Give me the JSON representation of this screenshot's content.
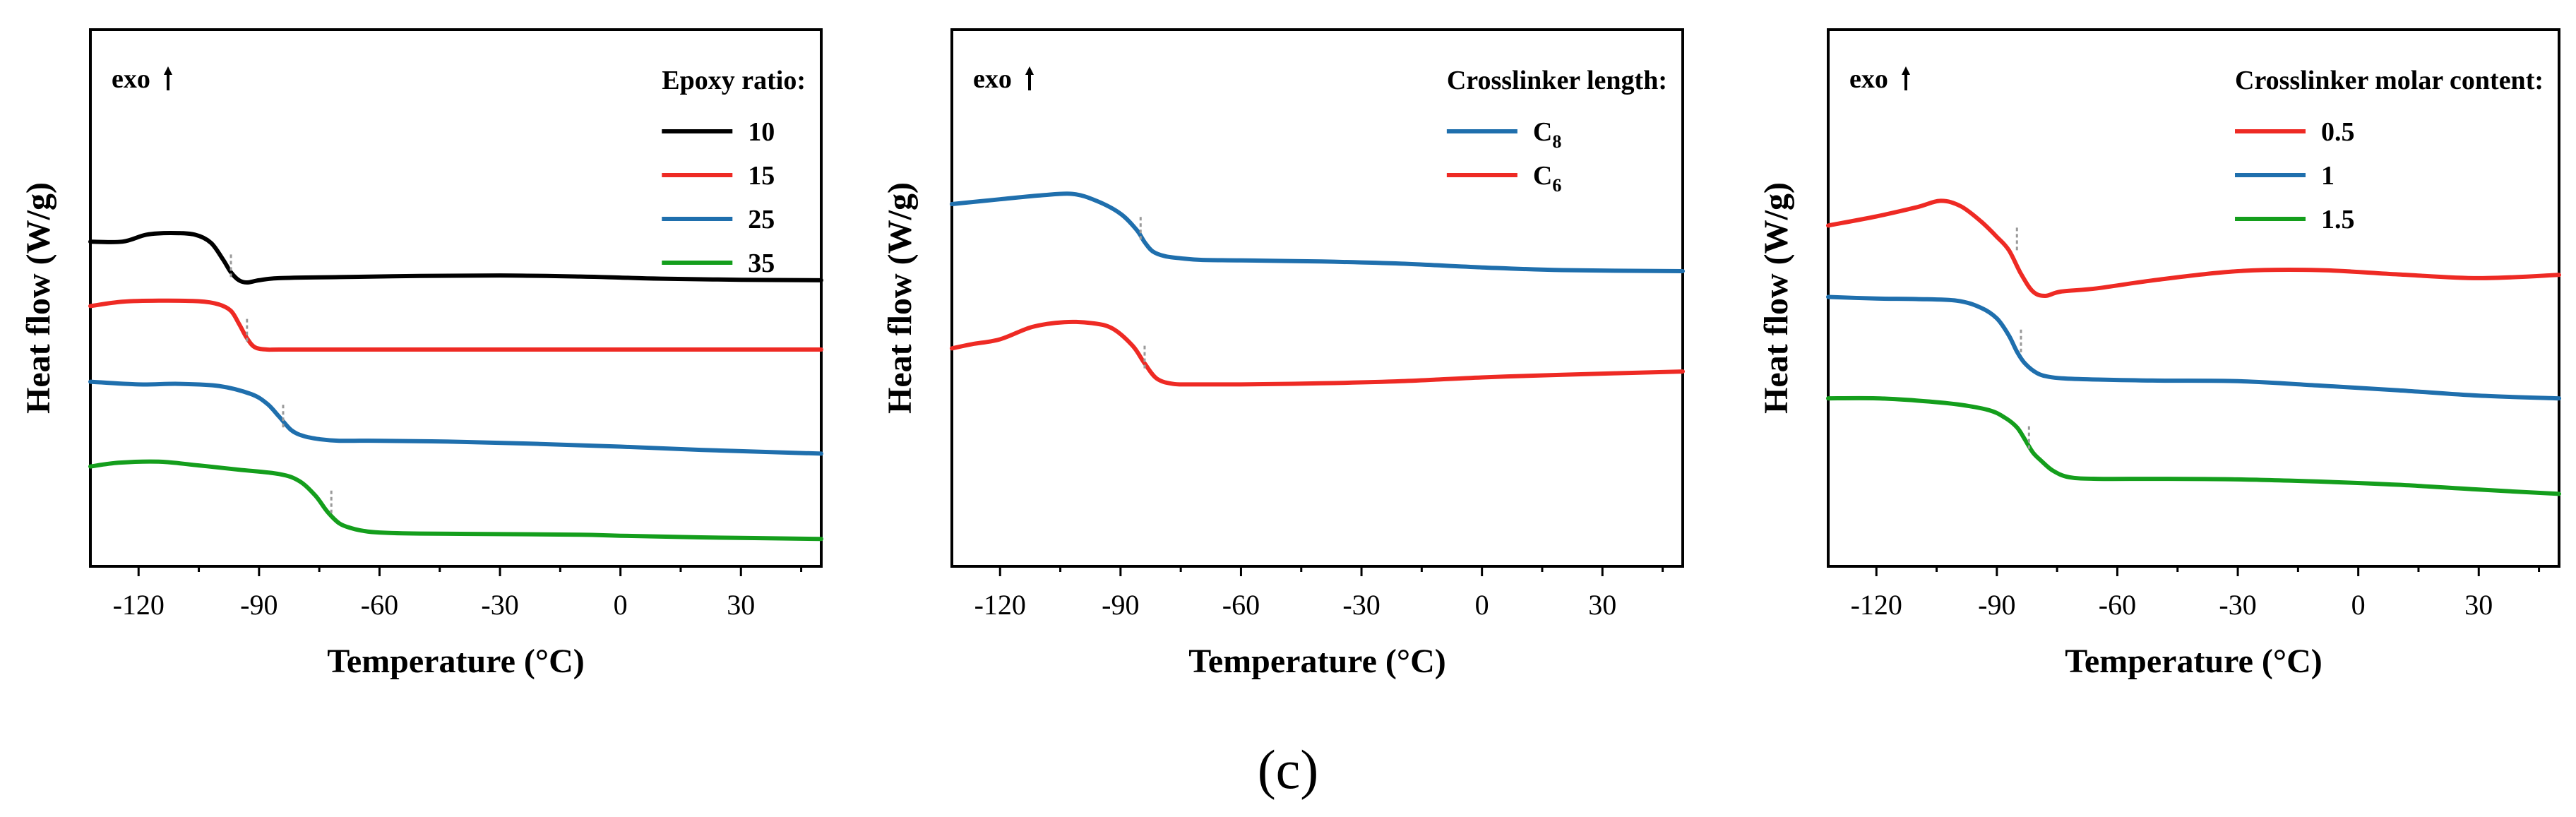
{
  "figure_label": "(c)",
  "colors": {
    "black": "#000000",
    "red": "#ee2a24",
    "blue": "#1f6fad",
    "green": "#149e1c"
  },
  "chart_data": [
    {
      "type": "line",
      "id": "a",
      "xlabel": "Temperature (°C)",
      "ylabel": "Heat flow (W/g)",
      "annotation": "exo",
      "legend_title": "Epoxy ratio:",
      "legend_position": "top-right",
      "xlim": [
        -132,
        50
      ],
      "ylim": [
        0,
        100
      ],
      "xticks": [
        -120,
        -90,
        -60,
        -30,
        0,
        30
      ],
      "xtick_labels": [
        "-120",
        "-90",
        "-60",
        "-30",
        "0",
        "30"
      ],
      "series": [
        {
          "name": "10",
          "color": "#000000",
          "x": [
            -132,
            -124,
            -118,
            -112,
            -106,
            -102,
            -99,
            -97,
            -95,
            -93,
            -90,
            -85,
            -70,
            -50,
            -30,
            -10,
            0,
            10,
            30,
            50
          ],
          "y": [
            60.5,
            60.5,
            61.8,
            62.1,
            61.8,
            60.3,
            57.2,
            54.8,
            53.3,
            52.9,
            53.3,
            53.7,
            53.9,
            54.1,
            54.2,
            54.0,
            53.8,
            53.6,
            53.4,
            53.3
          ],
          "tg": [
            -97,
            56
          ]
        },
        {
          "name": "15",
          "color": "#ee2a24",
          "x": [
            -132,
            -124,
            -115,
            -105,
            -100,
            -97,
            -95,
            -93,
            -91,
            -88,
            -85,
            -70,
            -50,
            -30,
            0,
            30,
            50
          ],
          "y": [
            48.5,
            49.3,
            49.5,
            49.4,
            48.8,
            47.6,
            45.2,
            42.5,
            40.8,
            40.4,
            40.4,
            40.4,
            40.4,
            40.4,
            40.4,
            40.4,
            40.4
          ],
          "tg": [
            -93,
            44
          ]
        },
        {
          "name": "25",
          "color": "#1f6fad",
          "x": [
            -132,
            -120,
            -110,
            -100,
            -92,
            -88,
            -85,
            -82,
            -79,
            -75,
            -70,
            -60,
            -40,
            -20,
            0,
            20,
            50
          ],
          "y": [
            34.4,
            33.9,
            34.0,
            33.6,
            32.1,
            30.3,
            27.9,
            25.4,
            24.3,
            23.7,
            23.4,
            23.4,
            23.2,
            22.8,
            22.3,
            21.7,
            21.0
          ],
          "tg": [
            -84,
            28
          ]
        },
        {
          "name": "35",
          "color": "#149e1c",
          "x": [
            -132,
            -125,
            -115,
            -105,
            -95,
            -85,
            -80,
            -76,
            -73,
            -70,
            -67,
            -64,
            -60,
            -50,
            -30,
            -10,
            0,
            20,
            50
          ],
          "y": [
            18.6,
            19.3,
            19.5,
            18.8,
            18.0,
            17.2,
            15.9,
            13.2,
            10.2,
            8.0,
            7.1,
            6.6,
            6.3,
            6.1,
            6.0,
            5.9,
            5.7,
            5.4,
            5.1
          ],
          "tg": [
            -72,
            12
          ]
        }
      ]
    },
    {
      "type": "line",
      "id": "b",
      "xlabel": "Temperature (°C)",
      "ylabel": "Heat flow (W/g)",
      "annotation": "exo",
      "legend_title": "Crosslinker length:",
      "legend_position": "top-right",
      "xlim": [
        -132,
        50
      ],
      "ylim": [
        0,
        100
      ],
      "xticks": [
        -120,
        -90,
        -60,
        -30,
        0,
        30
      ],
      "xtick_labels": [
        "-120",
        "-90",
        "-60",
        "-30",
        "0",
        "30"
      ],
      "series": [
        {
          "name": "C",
          "subscript": "8",
          "color": "#1f6fad",
          "x": [
            -132,
            -120,
            -110,
            -102,
            -96,
            -90,
            -86,
            -84,
            -82,
            -79,
            -75,
            -70,
            -60,
            -40,
            -20,
            0,
            20,
            50
          ],
          "y": [
            67.5,
            68.4,
            69.1,
            69.4,
            68.1,
            65.7,
            62.7,
            60.4,
            58.7,
            57.8,
            57.4,
            57.1,
            57.0,
            56.8,
            56.4,
            55.7,
            55.2,
            55.0
          ],
          "tg": [
            -85,
            63
          ]
        },
        {
          "name": "C",
          "subscript": "6",
          "color": "#ee2a24",
          "x": [
            -132,
            -127,
            -120,
            -112,
            -104,
            -97,
            -92,
            -87,
            -84,
            -81,
            -77,
            -72,
            -60,
            -40,
            -20,
            0,
            20,
            50
          ],
          "y": [
            40.6,
            41.4,
            42.3,
            44.6,
            45.5,
            45.3,
            44.3,
            41.1,
            37.8,
            35.0,
            34.0,
            33.9,
            33.9,
            34.1,
            34.5,
            35.2,
            35.7,
            36.3
          ],
          "tg": [
            -84,
            39
          ]
        }
      ]
    },
    {
      "type": "line",
      "id": "c",
      "xlabel": "Temperature (°C)",
      "ylabel": "Heat flow (W/g)",
      "annotation": "exo",
      "legend_title": "Crosslinker molar content:",
      "legend_position": "top-right",
      "xlim": [
        -132,
        50
      ],
      "ylim": [
        0,
        100
      ],
      "xticks": [
        -120,
        -90,
        -60,
        -30,
        0,
        30
      ],
      "xtick_labels": [
        "-120",
        "-90",
        "-60",
        "-30",
        "0",
        "30"
      ],
      "series": [
        {
          "name": "0.5",
          "color": "#ee2a24",
          "x": [
            -132,
            -120,
            -110,
            -104,
            -99,
            -94,
            -90,
            -87,
            -84,
            -81,
            -78,
            -74,
            -65,
            -50,
            -30,
            -10,
            10,
            30,
            50
          ],
          "y": [
            63.5,
            65.2,
            66.9,
            68.1,
            67.1,
            64.3,
            61.4,
            58.9,
            54.5,
            51.2,
            50.4,
            51.2,
            51.8,
            53.4,
            55.0,
            55.2,
            54.4,
            53.7,
            54.3
          ],
          "tg": [
            -85,
            61
          ]
        },
        {
          "name": "1",
          "color": "#1f6fad",
          "x": [
            -132,
            -120,
            -110,
            -100,
            -94,
            -90,
            -87,
            -85,
            -83,
            -80,
            -77,
            -73,
            -65,
            -50,
            -30,
            -10,
            10,
            30,
            50
          ],
          "y": [
            50.2,
            49.9,
            49.8,
            49.5,
            48.2,
            46.2,
            43.0,
            40.0,
            37.8,
            36.0,
            35.3,
            35.0,
            34.8,
            34.6,
            34.5,
            33.7,
            32.8,
            31.8,
            31.3
          ],
          "tg": [
            -84,
            42
          ]
        },
        {
          "name": "1.5",
          "color": "#149e1c",
          "x": [
            -132,
            -120,
            -110,
            -100,
            -92,
            -88,
            -85,
            -83,
            -81,
            -79,
            -76,
            -72,
            -65,
            -50,
            -30,
            -10,
            10,
            30,
            50
          ],
          "y": [
            31.3,
            31.3,
            30.9,
            30.2,
            29.1,
            27.7,
            25.9,
            23.6,
            21.2,
            19.7,
            17.8,
            16.6,
            16.3,
            16.3,
            16.2,
            15.8,
            15.2,
            14.3,
            13.5
          ],
          "tg": [
            -82,
            24
          ]
        }
      ]
    }
  ]
}
